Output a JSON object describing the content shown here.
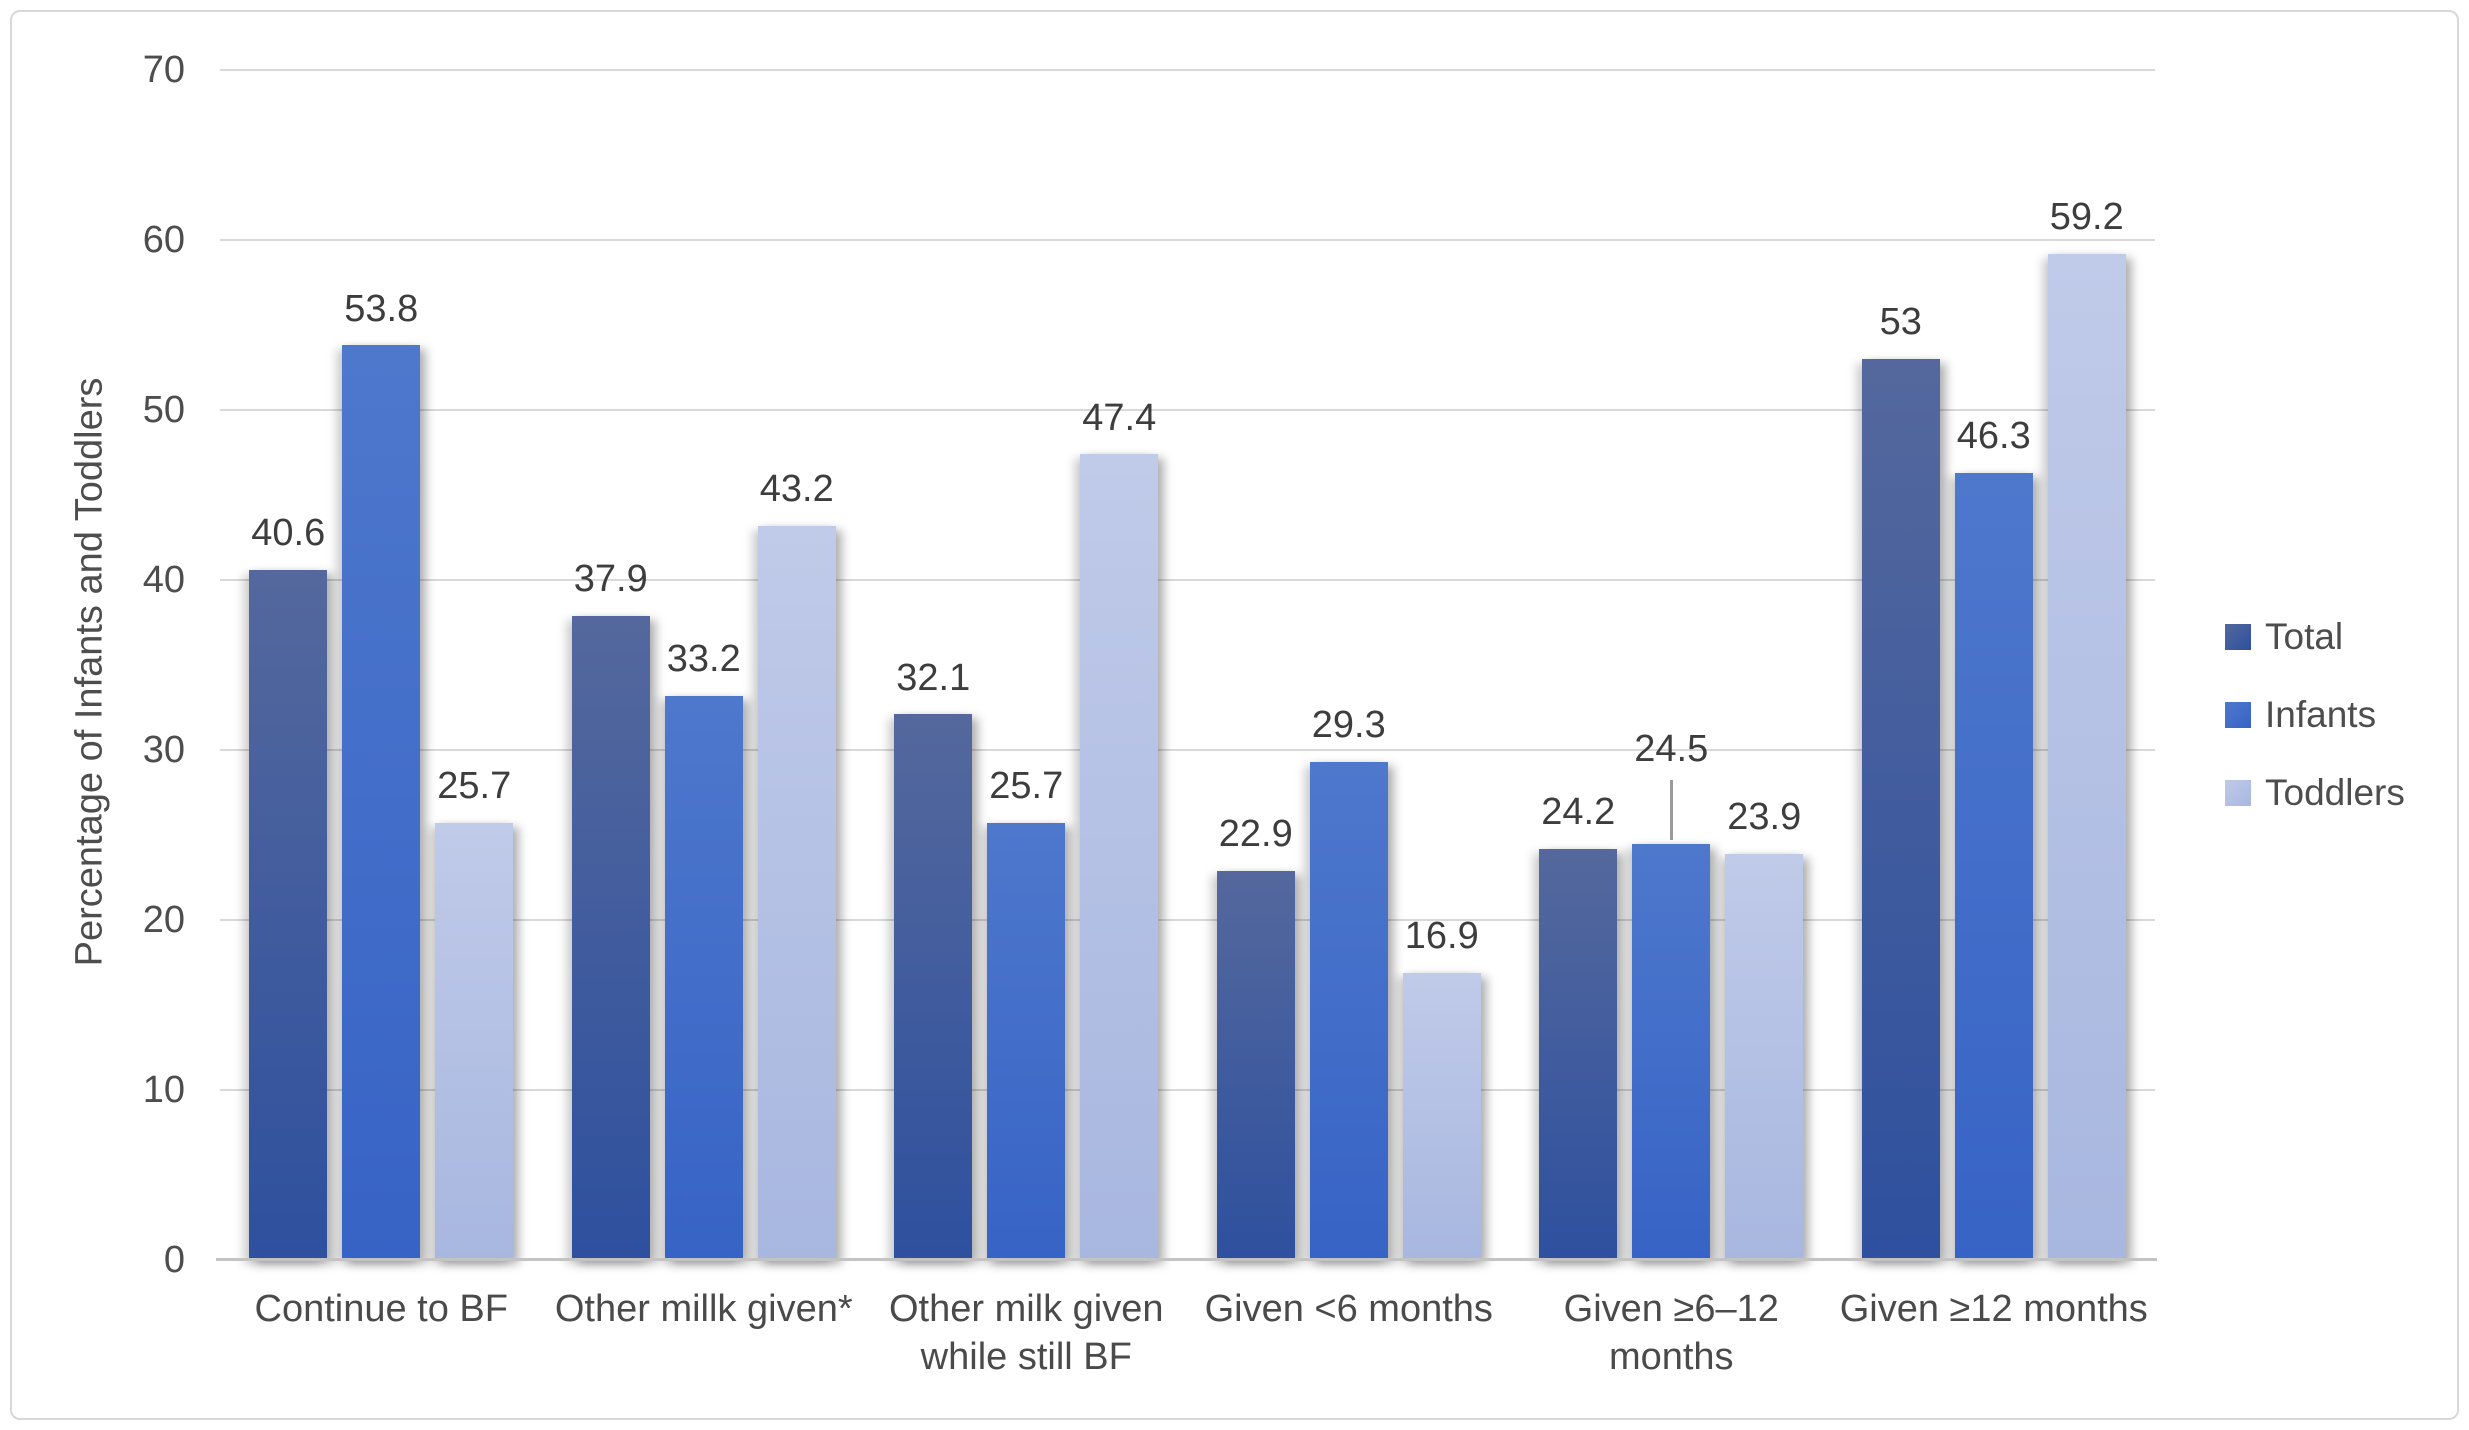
{
  "chart_data": {
    "type": "bar",
    "title": "",
    "xlabel": "",
    "ylabel": "Percentage of Infants and Toddlers",
    "ylim": [
      0,
      70
    ],
    "yticks": [
      0,
      10,
      20,
      30,
      40,
      50,
      60,
      70
    ],
    "grid": true,
    "legend_position": "right",
    "categories": [
      "Continue to BF",
      "Other millk given*",
      "Other milk given\nwhile still BF",
      "Given <6 months",
      "Given ≥6–12\nmonths",
      "Given ≥12 months"
    ],
    "series": [
      {
        "name": "Total",
        "color_top": "#54689d",
        "color_bottom": "#2e509e",
        "values": [
          40.6,
          37.9,
          32.1,
          22.9,
          24.2,
          53
        ]
      },
      {
        "name": "Infants",
        "color_top": "#4e78cc",
        "color_bottom": "#3763c6",
        "values": [
          53.8,
          33.2,
          25.7,
          29.3,
          24.5,
          46.3
        ]
      },
      {
        "name": "Toddlers",
        "color_top": "#c0cae9",
        "color_bottom": "#a8b7e0",
        "values": [
          25.7,
          43.2,
          47.4,
          16.9,
          23.9,
          59.2
        ]
      }
    ],
    "data_label_decimals": 1,
    "leader_line": {
      "series_index": 1,
      "category_index": 4
    }
  }
}
